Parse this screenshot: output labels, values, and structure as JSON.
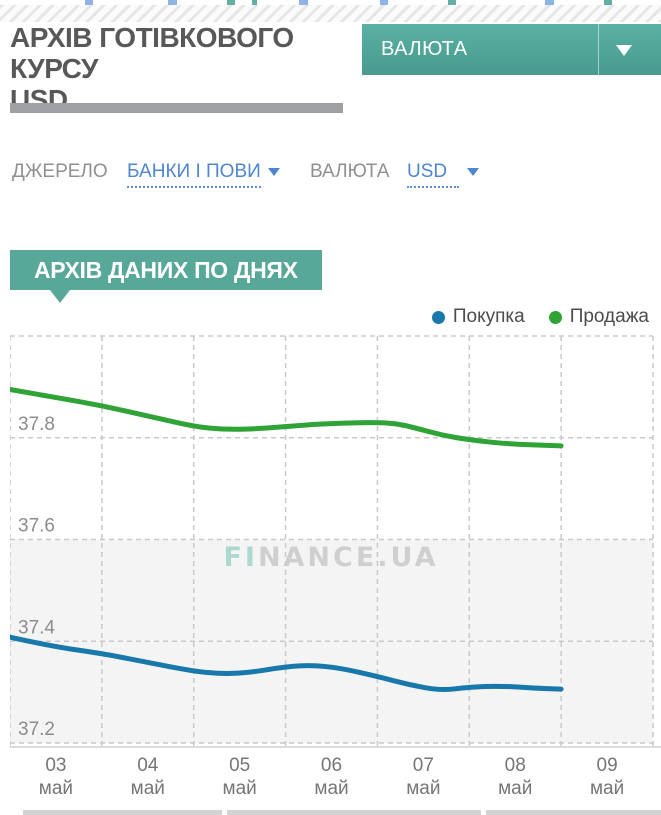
{
  "page": {
    "title_line1": "АРХІВ ГОТІВКОВОГО КУРСУ",
    "title_line2": "USD"
  },
  "currency_button": {
    "label": "ВАЛЮТА"
  },
  "filters": {
    "source_label": "ДЖЕРЕЛО",
    "source_value": "БАНКИ І ПОВИ",
    "currency_label": "ВАЛЮТА",
    "currency_value": "USD"
  },
  "section_tag": "АРХІВ ДАНИХ ПО ДНЯХ",
  "watermark": "FINANCE.UA",
  "legend": [
    {
      "name": "Покупка",
      "color": "#1878ab"
    },
    {
      "name": "Продажа",
      "color": "#2fa336"
    }
  ],
  "colors": {
    "accent_teal": "#58a89a",
    "link_blue": "#4e86cf",
    "buy_line": "#1878ab",
    "sell_line": "#2fa336"
  },
  "chart_data": {
    "type": "line",
    "title": "",
    "xlabel": "",
    "ylabel": "",
    "ylim": [
      37.2,
      38.0
    ],
    "yticks": [
      37.2,
      37.4,
      37.6,
      37.8
    ],
    "grid": "dashed",
    "legend_position": "top-right",
    "shaded_region": {
      "from": 37.2,
      "to": 37.6,
      "color": "#f4f4f4"
    },
    "categories": [
      {
        "day": "03",
        "month": "май"
      },
      {
        "day": "04",
        "month": "май"
      },
      {
        "day": "05",
        "month": "май"
      },
      {
        "day": "06",
        "month": "май"
      },
      {
        "day": "07",
        "month": "май"
      },
      {
        "day": "08",
        "month": "май"
      },
      {
        "day": "09",
        "month": "май"
      }
    ],
    "series": [
      {
        "name": "Покупка",
        "color": "#1878ab",
        "points": [
          [
            0,
            37.408
          ],
          [
            0.45,
            37.39
          ],
          [
            1.0,
            37.376
          ],
          [
            1.45,
            37.36
          ],
          [
            2.0,
            37.341
          ],
          [
            2.3,
            37.336
          ],
          [
            2.6,
            37.338
          ],
          [
            3.0,
            37.35
          ],
          [
            3.3,
            37.353
          ],
          [
            3.6,
            37.347
          ],
          [
            4.0,
            37.331
          ],
          [
            4.35,
            37.314
          ],
          [
            4.7,
            37.303
          ],
          [
            5.0,
            37.31
          ],
          [
            5.35,
            37.312
          ],
          [
            5.7,
            37.308
          ],
          [
            6.0,
            37.306
          ]
        ]
      },
      {
        "name": "Продажа",
        "color": "#2fa336",
        "points": [
          [
            0,
            37.895
          ],
          [
            0.5,
            37.879
          ],
          [
            1.0,
            37.863
          ],
          [
            1.5,
            37.843
          ],
          [
            2.0,
            37.822
          ],
          [
            2.35,
            37.816
          ],
          [
            2.75,
            37.818
          ],
          [
            3.2,
            37.825
          ],
          [
            3.6,
            37.829
          ],
          [
            4.0,
            37.83
          ],
          [
            4.2,
            37.828
          ],
          [
            4.4,
            37.82
          ],
          [
            4.7,
            37.805
          ],
          [
            5.0,
            37.796
          ],
          [
            5.4,
            37.788
          ],
          [
            6.0,
            37.784
          ]
        ]
      }
    ]
  }
}
